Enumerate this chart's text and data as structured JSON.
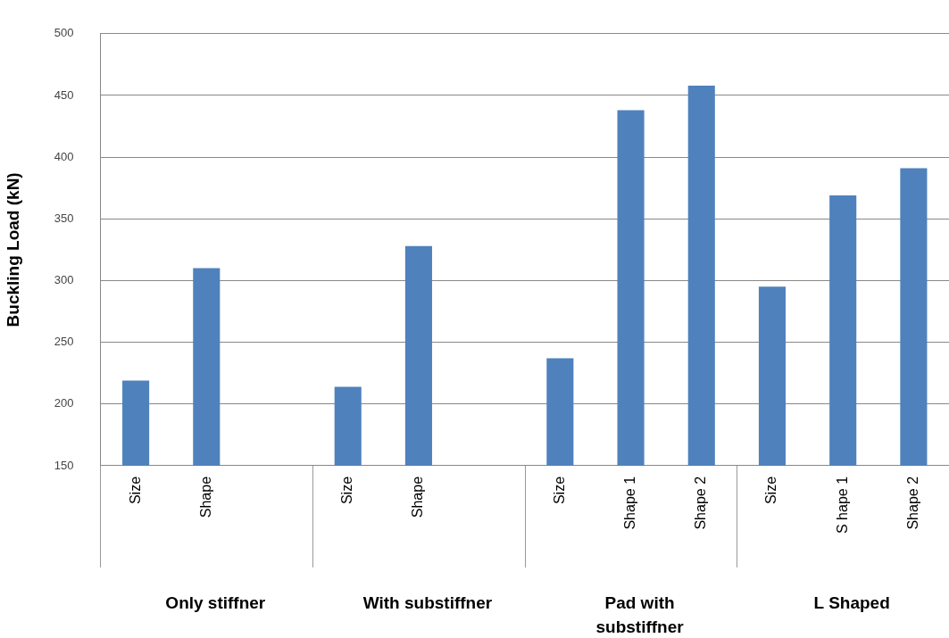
{
  "chart_data": {
    "type": "bar",
    "ylabel": "Buckling Load (kN)",
    "categories": [
      "Size",
      "Shape",
      null,
      "Size",
      "Shape",
      null,
      "Size",
      "Shape 1",
      "Shape 2",
      "Size",
      "S hape 1",
      "Shape 2"
    ],
    "values": [
      219,
      310,
      null,
      214,
      328,
      null,
      237,
      438,
      458,
      295,
      369,
      391
    ],
    "color": "#4f81bd",
    "ylim": [
      150,
      500
    ],
    "yticks": [
      150,
      200,
      250,
      300,
      350,
      400,
      450,
      500
    ],
    "grid": "y",
    "legend": false,
    "annotations": [
      "Only stiffner",
      "With substiffner",
      "Pad with substiffner",
      "L Shaped"
    ]
  }
}
